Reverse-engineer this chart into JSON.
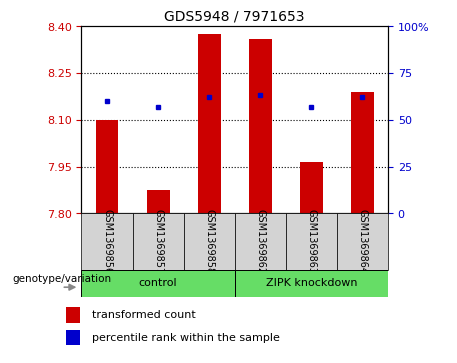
{
  "title": "GDS5948 / 7971653",
  "samples": [
    "GSM1369856",
    "GSM1369857",
    "GSM1369858",
    "GSM1369862",
    "GSM1369863",
    "GSM1369864"
  ],
  "bar_values": [
    8.1,
    7.875,
    8.375,
    8.36,
    7.965,
    8.19
  ],
  "dot_values": [
    60,
    57,
    62,
    63,
    57,
    62
  ],
  "ylim_left": [
    7.8,
    8.4
  ],
  "ylim_right": [
    0,
    100
  ],
  "yticks_left": [
    7.8,
    7.95,
    8.1,
    8.25,
    8.4
  ],
  "yticks_right": [
    0,
    25,
    50,
    75,
    100
  ],
  "ytick_right_labels": [
    "0",
    "25",
    "50",
    "75",
    "100%"
  ],
  "bar_color": "#cc0000",
  "dot_color": "#0000cc",
  "bar_bottom": 7.8,
  "grid_yticks": [
    7.95,
    8.1,
    8.25
  ],
  "bar_width": 0.45,
  "left_tick_color": "#cc0000",
  "right_tick_color": "#0000cc",
  "plot_bg": "#ffffff",
  "fig_bg": "#ffffff",
  "sample_box_color": "#d3d3d3",
  "group_box_color": "#66dd66",
  "group_labels": [
    "control",
    "ZIPK knockdown"
  ],
  "geno_label": "genotype/variation",
  "legend_bar_label": "transformed count",
  "legend_dot_label": "percentile rank within the sample",
  "title_fontsize": 10,
  "tick_fontsize": 8,
  "sample_fontsize": 7,
  "group_fontsize": 8,
  "legend_fontsize": 8,
  "geno_fontsize": 7.5
}
